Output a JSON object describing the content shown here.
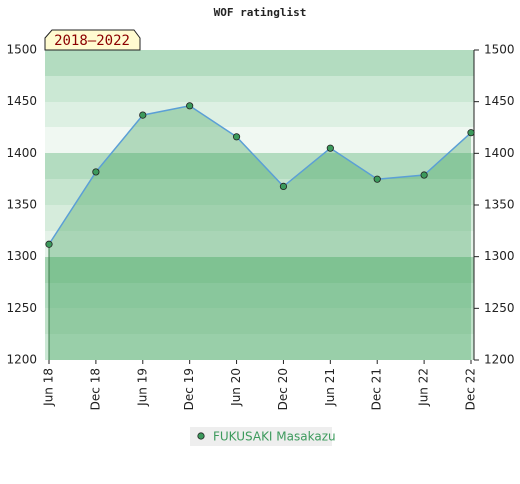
{
  "chart_data": {
    "type": "line",
    "title": "WOF ratinglist",
    "badge": "2018–2022",
    "categories": [
      "Jun 18",
      "Dec 18",
      "Jun 19",
      "Dec 19",
      "Jun 20",
      "Dec 20",
      "Jun 21",
      "Dec 21",
      "Jun 22",
      "Dec 22"
    ],
    "series": [
      {
        "name": "FUKUSAKI Masakazu",
        "color": "#5b9fd6",
        "marker_color": "#3c9a5c",
        "area_color": "#3ca05a",
        "values": [
          1312,
          1382,
          1437,
          1446,
          1416,
          1368,
          1405,
          1375,
          1379,
          1420
        ]
      }
    ],
    "ylim": [
      1200,
      1500
    ],
    "yticks": [
      1200,
      1250,
      1300,
      1350,
      1400,
      1450,
      1500
    ],
    "right_axis": true
  }
}
